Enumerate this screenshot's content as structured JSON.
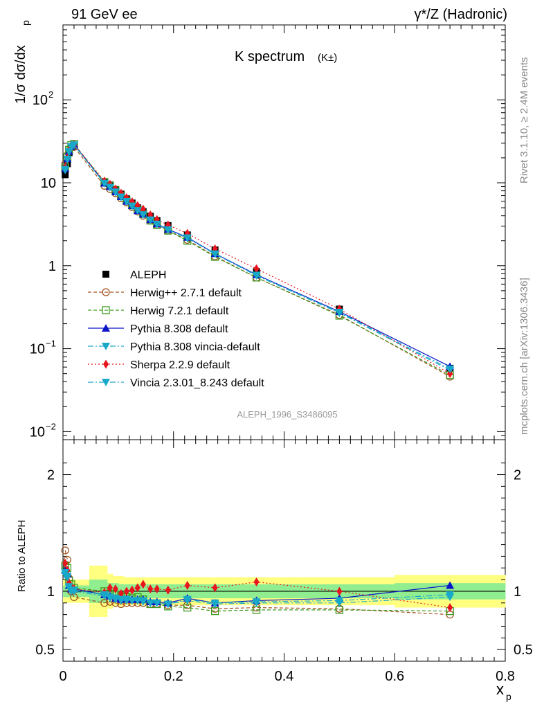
{
  "header": {
    "left": "91 GeV ee",
    "right": "γ*/Z (Hadronic)"
  },
  "side_labels": {
    "rivet": "Rivet 3.1.10, ≥ 2.4M events",
    "mcplots": "mcplots.cern.ch [arXiv:1306.3436]"
  },
  "analysis_id": "ALEPH_1996_S3486095",
  "chart_data": [
    {
      "panel": "main",
      "type": "scatter",
      "title": "K spectrum",
      "title_sub": "(K±)",
      "ylabel": "1/σ dσ/dx",
      "ylabel_sub": "p",
      "ylog": true,
      "ylim": [
        0.008,
        800
      ],
      "xlim": [
        0,
        0.8
      ],
      "yticks": [
        {
          "v": 0.01,
          "label": "10",
          "exp": "−2"
        },
        {
          "v": 0.1,
          "label": "10",
          "exp": "−1"
        },
        {
          "v": 1,
          "label": "1",
          "exp": ""
        },
        {
          "v": 10,
          "label": "10",
          "exp": ""
        },
        {
          "v": 100,
          "label": "10",
          "exp": "2"
        }
      ],
      "legend_position": "middle-left",
      "x": [
        0.004,
        0.008,
        0.011,
        0.015,
        0.02,
        0.075,
        0.085,
        0.095,
        0.105,
        0.115,
        0.125,
        0.135,
        0.145,
        0.158,
        0.17,
        0.19,
        0.225,
        0.275,
        0.35,
        0.5,
        0.7
      ],
      "series": [
        {
          "name": "ALEPH",
          "color": "#000000",
          "marker": "square-filled",
          "line": "none",
          "values": [
            12.5,
            17.0,
            23.0,
            27.0,
            28.5,
            10.2,
            9.4,
            8.3,
            7.3,
            6.4,
            5.7,
            5.0,
            4.5,
            3.95,
            3.5,
            3.05,
            2.35,
            1.55,
            0.85,
            0.3,
            0.058
          ]
        },
        {
          "name": "Herwig++ 2.7.1 default",
          "color": "#a0521e",
          "marker": "circle-open",
          "line": "dashed",
          "values": [
            16.8,
            21.5,
            25.5,
            27.3,
            27.0,
            9.2,
            8.4,
            7.5,
            6.5,
            5.8,
            5.1,
            4.5,
            4.0,
            3.5,
            3.1,
            2.65,
            2.05,
            1.3,
            0.72,
            0.255,
            0.046
          ]
        },
        {
          "name": "Herwig 7.2.1 default",
          "color": "#3d9a1f",
          "marker": "square-open",
          "line": "dashed",
          "values": [
            15.3,
            20.5,
            25.0,
            28.5,
            29.5,
            10.2,
            9.2,
            8.1,
            7.0,
            6.1,
            5.35,
            4.75,
            4.2,
            3.5,
            3.1,
            2.65,
            2.0,
            1.28,
            0.72,
            0.25,
            0.048
          ]
        },
        {
          "name": "Pythia 8.308 default",
          "color": "#0a14c8",
          "marker": "triangle-up",
          "line": "solid",
          "values": [
            14.8,
            19.5,
            24.0,
            27.5,
            29.0,
            9.9,
            9.0,
            7.8,
            6.8,
            6.0,
            5.3,
            4.6,
            4.2,
            3.6,
            3.2,
            2.75,
            2.2,
            1.4,
            0.78,
            0.28,
            0.061
          ]
        },
        {
          "name": "Pythia 8.308 vincia-default",
          "color": "#1aa8c8",
          "marker": "triangle-down",
          "line": "dashdot",
          "values": [
            14.2,
            19.0,
            23.5,
            27.0,
            28.5,
            9.8,
            8.8,
            7.7,
            6.7,
            5.9,
            5.2,
            4.6,
            4.1,
            3.55,
            3.15,
            2.7,
            2.15,
            1.38,
            0.76,
            0.27,
            0.055
          ]
        },
        {
          "name": "Sherpa 2.2.9 default",
          "color": "#e8141e",
          "marker": "diamond",
          "line": "dotted",
          "values": [
            15.5,
            20.0,
            24.5,
            28.0,
            29.0,
            10.5,
            9.6,
            8.4,
            7.5,
            6.6,
            5.9,
            5.3,
            4.8,
            4.1,
            3.6,
            3.1,
            2.45,
            1.6,
            0.92,
            0.3,
            0.05
          ]
        },
        {
          "name": "Vincia 2.3.01_8.243 default",
          "color": "#1aa8c8",
          "marker": "triangle-down",
          "line": "dashdot",
          "values": [
            14.5,
            19.2,
            23.7,
            27.2,
            28.7,
            9.85,
            8.85,
            7.75,
            6.75,
            5.95,
            5.25,
            4.62,
            4.12,
            3.57,
            3.17,
            2.72,
            2.17,
            1.39,
            0.77,
            0.275,
            0.057
          ]
        }
      ]
    },
    {
      "panel": "ratio",
      "type": "scatter",
      "ylabel": "Ratio to ALEPH",
      "ylim": [
        0.4,
        2.3
      ],
      "xlim": [
        0,
        0.8
      ],
      "xlabel": "x",
      "xlabel_sub": "p",
      "xticks": [
        0,
        0.2,
        0.4,
        0.6,
        0.8
      ],
      "xtick_labels": [
        "0",
        "0.2",
        "0.4",
        "0.6",
        "0.8"
      ],
      "yticks": [
        0.5,
        1,
        2
      ],
      "ytick_labels": [
        "0.5",
        "1",
        "2"
      ],
      "band_x": [
        0.004,
        0.008,
        0.011,
        0.015,
        0.02,
        0.075,
        0.085,
        0.095,
        0.105,
        0.115,
        0.125,
        0.135,
        0.145,
        0.158,
        0.17,
        0.19,
        0.225,
        0.275,
        0.35,
        0.5,
        0.7
      ],
      "band_stat": [
        0.05,
        0.05,
        0.05,
        0.05,
        0.05,
        0.1,
        0.07,
        0.07,
        0.06,
        0.06,
        0.06,
        0.06,
        0.06,
        0.06,
        0.06,
        0.06,
        0.06,
        0.06,
        0.06,
        0.06,
        0.07
      ],
      "band_total": [
        0.1,
        0.1,
        0.1,
        0.1,
        0.1,
        0.22,
        0.15,
        0.13,
        0.13,
        0.12,
        0.12,
        0.12,
        0.12,
        0.12,
        0.12,
        0.12,
        0.12,
        0.12,
        0.12,
        0.12,
        0.14
      ],
      "series": [
        {
          "name": "Herwig++ 2.7.1 default",
          "color": "#a0521e",
          "marker": "circle-open",
          "line": "dashed",
          "values": [
            1.35,
            1.27,
            1.11,
            1.0,
            0.95,
            0.9,
            0.91,
            0.9,
            0.89,
            0.9,
            0.9,
            0.9,
            0.9,
            0.89,
            0.89,
            0.88,
            0.88,
            0.85,
            0.86,
            0.85,
            0.8
          ]
        },
        {
          "name": "Herwig 7.2.1 default",
          "color": "#3d9a1f",
          "marker": "square-open",
          "line": "dashed",
          "values": [
            1.22,
            1.2,
            1.09,
            1.06,
            1.03,
            1.0,
            0.98,
            0.97,
            0.96,
            0.95,
            0.94,
            0.95,
            0.93,
            0.89,
            0.89,
            0.87,
            0.86,
            0.83,
            0.84,
            0.84,
            0.83
          ]
        },
        {
          "name": "Pythia 8.308 default",
          "color": "#0a14c8",
          "marker": "triangle-up",
          "line": "solid",
          "values": [
            1.18,
            1.15,
            1.05,
            1.02,
            1.02,
            0.97,
            0.96,
            0.94,
            0.93,
            0.94,
            0.93,
            0.93,
            0.93,
            0.91,
            0.91,
            0.9,
            0.94,
            0.9,
            0.92,
            0.94,
            1.05
          ]
        },
        {
          "name": "Pythia 8.308 vincia-default",
          "color": "#1aa8c8",
          "marker": "triangle-down",
          "line": "dashdot",
          "values": [
            1.14,
            1.12,
            1.03,
            1.0,
            1.0,
            0.96,
            0.94,
            0.93,
            0.92,
            0.92,
            0.92,
            0.92,
            0.91,
            0.9,
            0.9,
            0.89,
            0.92,
            0.89,
            0.9,
            0.9,
            0.95
          ]
        },
        {
          "name": "Sherpa 2.2.9 default",
          "color": "#e8141e",
          "marker": "diamond",
          "line": "dotted",
          "values": [
            1.24,
            1.18,
            1.07,
            1.04,
            1.02,
            0.99,
            1.03,
            1.02,
            0.98,
            1.0,
            1.01,
            1.03,
            1.06,
            1.02,
            1.02,
            1.01,
            1.05,
            1.03,
            1.08,
            1.0,
            0.86
          ]
        },
        {
          "name": "Vincia 2.3.01_8.243 default",
          "color": "#1aa8c8",
          "marker": "triangle-down",
          "line": "dashdot",
          "values": [
            1.16,
            1.13,
            1.04,
            1.01,
            1.01,
            0.97,
            0.95,
            0.94,
            0.93,
            0.93,
            0.92,
            0.92,
            0.92,
            0.9,
            0.9,
            0.89,
            0.93,
            0.9,
            0.91,
            0.92,
            0.97
          ]
        }
      ]
    }
  ]
}
